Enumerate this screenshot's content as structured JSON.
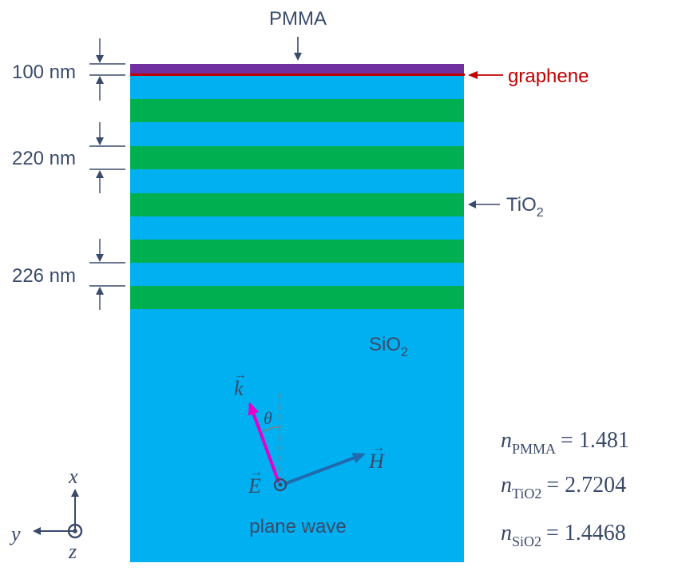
{
  "labels": {
    "pmma": "PMMA",
    "graphene": "graphene",
    "tio2_main": "TiO",
    "tio2_sub": "2",
    "sio2_main": "SiO",
    "sio2_sub": "2",
    "plane_wave": "plane wave"
  },
  "dimensions": {
    "d1": "100 nm",
    "d2": "220 nm",
    "d3": "226 nm"
  },
  "vectors": {
    "k": "k",
    "theta": "θ",
    "E": "E",
    "H": "H"
  },
  "axes": {
    "x": "x",
    "y": "y",
    "z": "z"
  },
  "indices": [
    {
      "symbol": "n",
      "sub": "PMMA",
      "value": "= 1.481"
    },
    {
      "symbol": "n",
      "sub": "TiO2",
      "value": "= 2.7204"
    },
    {
      "symbol": "n",
      "sub": "SiO2",
      "value": "= 1.4468"
    }
  ],
  "colors": {
    "sio2": "#00b0f0",
    "tio2": "#00b050",
    "pmma": "#7030a0",
    "graphene": "#c00000",
    "k_arrow": "#e600c8",
    "h_arrow": "#1f6bb0",
    "text": "#3a4a6b"
  }
}
